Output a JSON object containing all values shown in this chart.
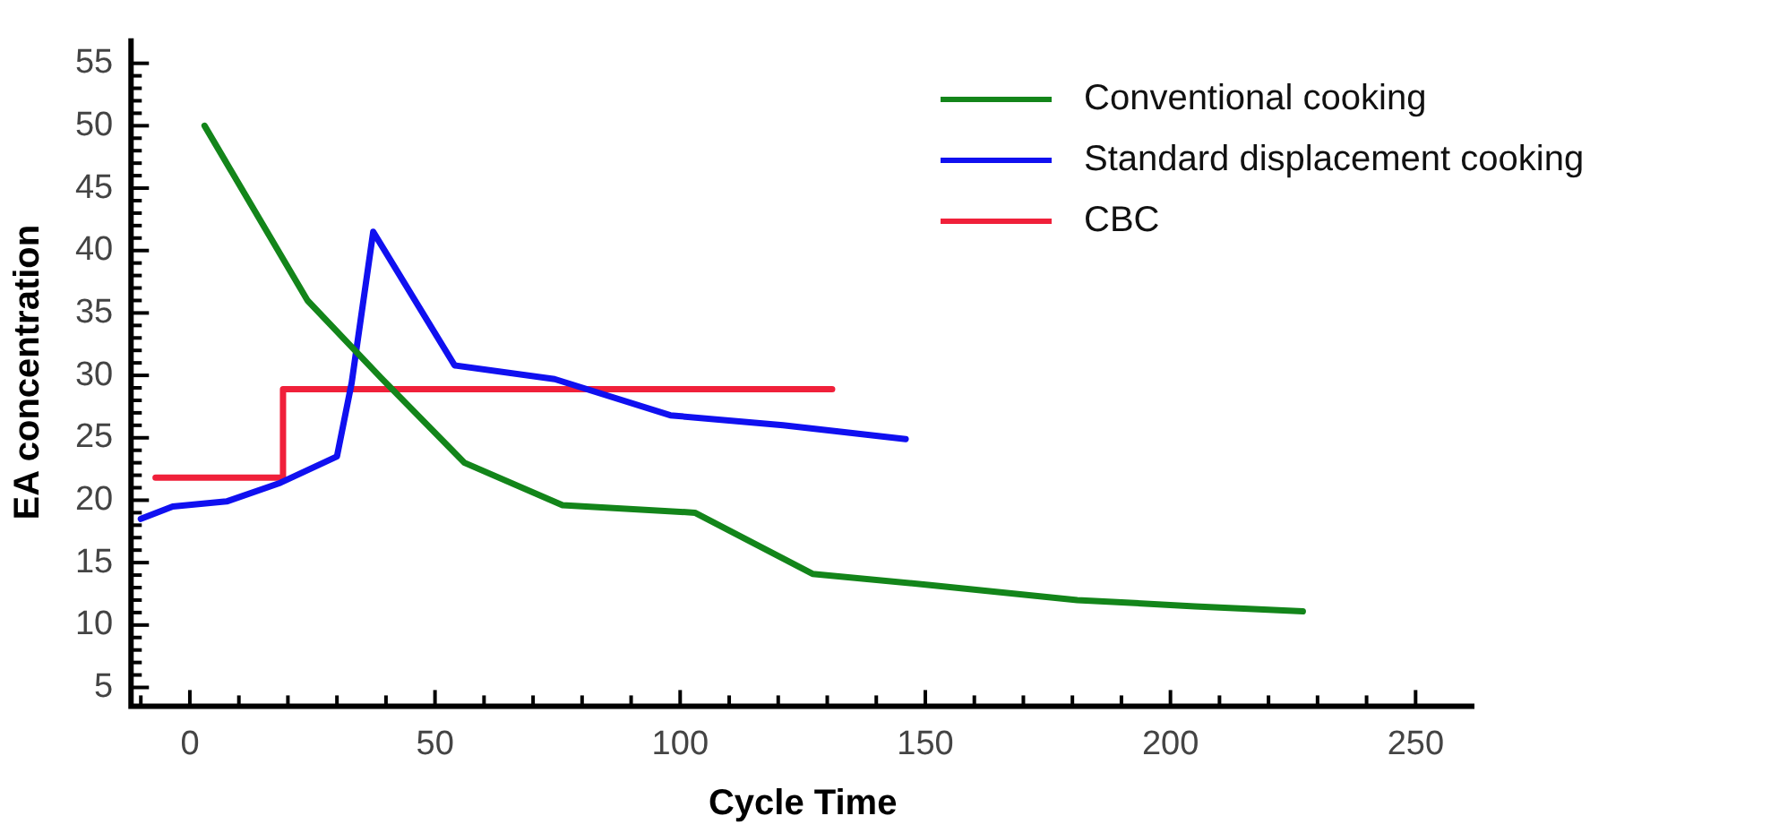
{
  "chart_data": {
    "type": "line",
    "xlabel": "Cycle Time",
    "ylabel": "EA concentration",
    "xlim": [
      -12,
      262
    ],
    "ylim": [
      3.5,
      57
    ],
    "xticks": [
      {
        "value": -10,
        "label": null
      },
      0,
      {
        "value": 10,
        "label": null
      },
      {
        "value": 20,
        "label": null
      },
      {
        "value": 30,
        "label": null
      },
      {
        "value": 40,
        "label": null
      },
      50,
      {
        "value": 60,
        "label": null
      },
      {
        "value": 70,
        "label": null
      },
      {
        "value": 80,
        "label": null
      },
      {
        "value": 90,
        "label": null
      },
      100,
      {
        "value": 110,
        "label": null
      },
      {
        "value": 120,
        "label": null
      },
      {
        "value": 130,
        "label": null
      },
      {
        "value": 140,
        "label": null
      },
      150,
      {
        "value": 160,
        "label": null
      },
      {
        "value": 170,
        "label": null
      },
      {
        "value": 180,
        "label": null
      },
      {
        "value": 190,
        "label": null
      },
      200,
      {
        "value": 210,
        "label": null
      },
      {
        "value": 220,
        "label": null
      },
      {
        "value": 230,
        "label": null
      },
      {
        "value": 240,
        "label": null
      },
      250
    ],
    "yticks": [
      5,
      {
        "value": 6,
        "label": null
      },
      {
        "value": 7,
        "label": null
      },
      {
        "value": 8,
        "label": null
      },
      {
        "value": 9,
        "label": null
      },
      10,
      {
        "value": 11,
        "label": null
      },
      {
        "value": 12,
        "label": null
      },
      {
        "value": 13,
        "label": null
      },
      {
        "value": 14,
        "label": null
      },
      15,
      {
        "value": 16,
        "label": null
      },
      {
        "value": 17,
        "label": null
      },
      {
        "value": 18,
        "label": null
      },
      {
        "value": 19,
        "label": null
      },
      20,
      {
        "value": 21,
        "label": null
      },
      {
        "value": 22,
        "label": null
      },
      {
        "value": 23,
        "label": null
      },
      {
        "value": 24,
        "label": null
      },
      25,
      {
        "value": 26,
        "label": null
      },
      {
        "value": 27,
        "label": null
      },
      {
        "value": 28,
        "label": null
      },
      {
        "value": 29,
        "label": null
      },
      30,
      {
        "value": 31,
        "label": null
      },
      {
        "value": 32,
        "label": null
      },
      {
        "value": 33,
        "label": null
      },
      {
        "value": 34,
        "label": null
      },
      35,
      {
        "value": 36,
        "label": null
      },
      {
        "value": 37,
        "label": null
      },
      {
        "value": 38,
        "label": null
      },
      {
        "value": 39,
        "label": null
      },
      40,
      {
        "value": 41,
        "label": null
      },
      {
        "value": 42,
        "label": null
      },
      {
        "value": 43,
        "label": null
      },
      {
        "value": 44,
        "label": null
      },
      45,
      {
        "value": 46,
        "label": null
      },
      {
        "value": 47,
        "label": null
      },
      {
        "value": 48,
        "label": null
      },
      {
        "value": 49,
        "label": null
      },
      50,
      {
        "value": 51,
        "label": null
      },
      {
        "value": 52,
        "label": null
      },
      {
        "value": 53,
        "label": null
      },
      {
        "value": 54,
        "label": null
      },
      55
    ],
    "grid": false,
    "legend": "top right",
    "marker": "none",
    "line_style": "solid",
    "series": [
      {
        "name": "Conventional cooking",
        "color": "#13851a",
        "x": [
          3,
          24,
          39,
          56,
          76,
          103,
          127,
          151,
          181,
          205,
          227
        ],
        "values": [
          50,
          36,
          29.8,
          23,
          19.6,
          19,
          14.1,
          13.2,
          12,
          11.5,
          11.1
        ]
      },
      {
        "name": "Standard displacement cooking",
        "color": "#1010f0",
        "x": [
          -10,
          -3.5,
          7.5,
          18.5,
          30,
          33,
          37.4,
          54,
          74.4,
          98,
          121,
          146
        ],
        "values": [
          18.5,
          19.5,
          19.9,
          21.4,
          23.5,
          29.4,
          41.5,
          30.8,
          29.7,
          26.8,
          26,
          24.9
        ]
      },
      {
        "name": "CBC",
        "type": "step",
        "color": "#f0203a",
        "x": [
          -7,
          19,
          131
        ],
        "values": [
          21.8,
          28.9,
          28.9
        ]
      }
    ]
  }
}
